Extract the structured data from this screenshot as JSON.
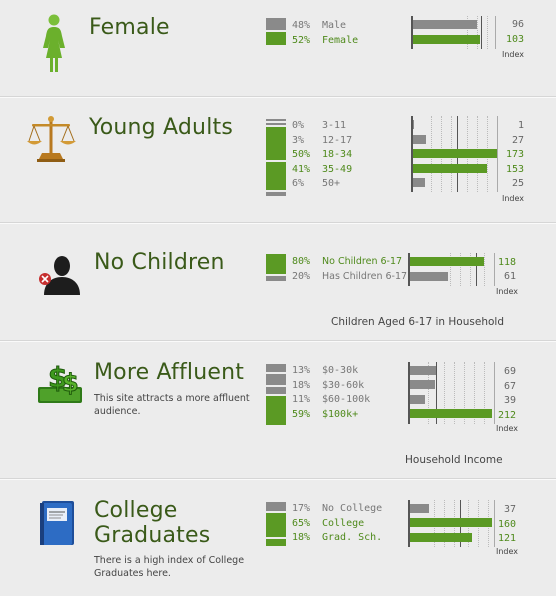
{
  "colors": {
    "accent": "#5b9a24",
    "muted": "#8a8a8a",
    "title": "#3a5a19"
  },
  "index_label": "Index",
  "sections": [
    {
      "icon": "female-icon",
      "title": "Female",
      "title2": "",
      "description": "",
      "caption": "",
      "rows": [
        {
          "pct": "48%",
          "label": "Male",
          "index": "96",
          "value": 96,
          "highlight": false
        },
        {
          "pct": "52%",
          "label": "Female",
          "index": "103",
          "value": 103,
          "highlight": true
        }
      ]
    },
    {
      "icon": "scales-icon",
      "title": "Young Adults",
      "title2": "",
      "description": "",
      "caption": "",
      "rows": [
        {
          "pct": "0%",
          "label": "3-11",
          "index": "1",
          "value": 1,
          "highlight": false
        },
        {
          "pct": "3%",
          "label": "12-17",
          "index": "27",
          "value": 27,
          "highlight": false
        },
        {
          "pct": "50%",
          "label": "18-34",
          "index": "173",
          "value": 173,
          "highlight": true
        },
        {
          "pct": "41%",
          "label": "35-49",
          "index": "153",
          "value": 153,
          "highlight": true
        },
        {
          "pct": "6%",
          "label": "50+",
          "index": "25",
          "value": 25,
          "highlight": false
        }
      ]
    },
    {
      "icon": "person-silhouette-icon",
      "title": "No Children",
      "title2": "",
      "description": "",
      "caption": "Children Aged 6-17 in Household",
      "rows": [
        {
          "pct": "80%",
          "label": "No Children 6-17",
          "index": "118",
          "value": 118,
          "highlight": true
        },
        {
          "pct": "20%",
          "label": "Has Children 6-17",
          "index": "61",
          "value": 61,
          "highlight": false
        }
      ]
    },
    {
      "icon": "money-icon",
      "title": "More Affluent",
      "title2": "",
      "description": "This site attracts a more affluent audience.",
      "caption": "Household Income",
      "rows": [
        {
          "pct": "13%",
          "label": "$0-30k",
          "index": "69",
          "value": 69,
          "highlight": false
        },
        {
          "pct": "18%",
          "label": "$30-60k",
          "index": "67",
          "value": 67,
          "highlight": false
        },
        {
          "pct": "11%",
          "label": "$60-100k",
          "index": "39",
          "value": 39,
          "highlight": false
        },
        {
          "pct": "59%",
          "label": "$100k+",
          "index": "212",
          "value": 212,
          "highlight": true
        }
      ]
    },
    {
      "icon": "book-icon",
      "title": "College",
      "title2": "Graduates",
      "description": "There is a high index of College Graduates here.",
      "caption": "",
      "rows": [
        {
          "pct": "17%",
          "label": "No College",
          "index": "37",
          "value": 37,
          "highlight": false
        },
        {
          "pct": "65%",
          "label": "College",
          "index": "160",
          "value": 160,
          "highlight": true
        },
        {
          "pct": "18%",
          "label": "Grad. Sch.",
          "index": "121",
          "value": 121,
          "highlight": true
        }
      ]
    }
  ]
}
